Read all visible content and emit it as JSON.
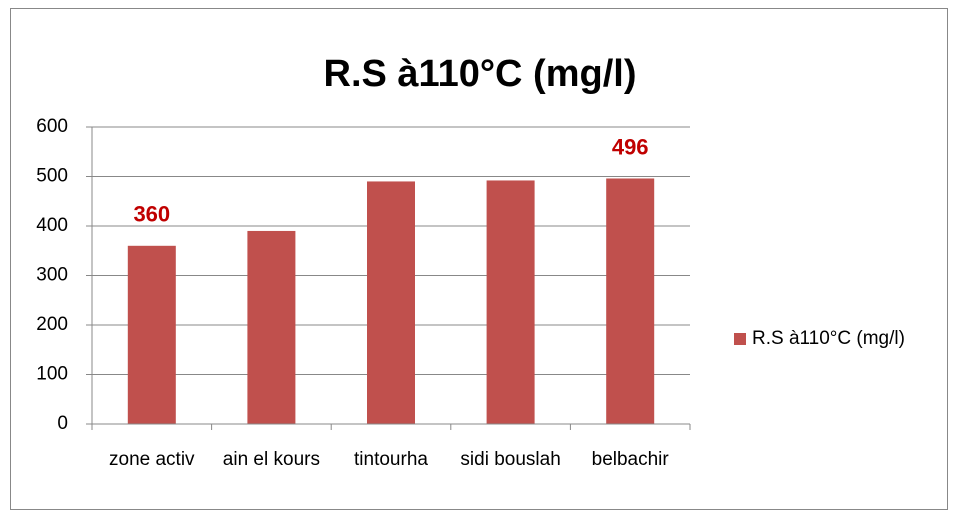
{
  "chart_data": {
    "type": "bar",
    "title": "R.S à110°C (mg/l)",
    "categories": [
      "zone activ",
      "ain el kours",
      "tintourha",
      "sidi bouslah",
      "belbachir"
    ],
    "series": [
      {
        "name": "R.S à110°C (mg/l)",
        "color": "#c0504d",
        "values": [
          360,
          390,
          490,
          492,
          496
        ],
        "value_labels": [
          360,
          null,
          null,
          null,
          496
        ],
        "value_label_color": "#c00000"
      }
    ],
    "ylim": [
      0,
      600
    ],
    "yticks": [
      0,
      100,
      200,
      300,
      400,
      500,
      600
    ],
    "grid": true,
    "legend": "right"
  }
}
